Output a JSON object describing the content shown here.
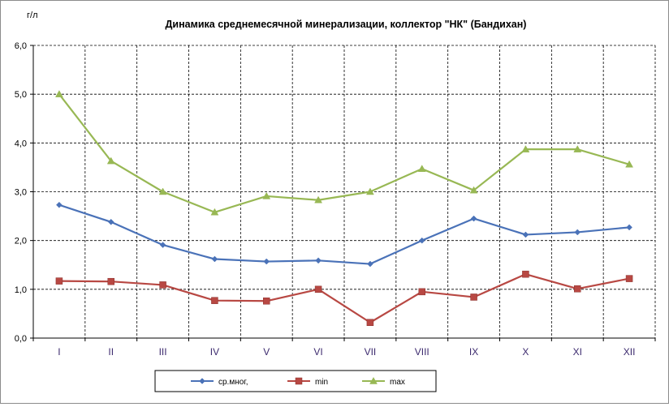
{
  "chart_data": {
    "type": "line",
    "title": "Динамика среднемесячной минерализации, коллектор \"НК\" (Бандихан)",
    "ylabel": "г/л",
    "xlabel": "",
    "categories": [
      "I",
      "II",
      "III",
      "IV",
      "V",
      "VI",
      "VII",
      "VIII",
      "IX",
      "X",
      "XI",
      "XII"
    ],
    "ylim": [
      0,
      6
    ],
    "yticks": [
      "0,0",
      "1,0",
      "2,0",
      "3,0",
      "4,0",
      "5,0",
      "6,0"
    ],
    "grid": true,
    "legend_position": "bottom",
    "series": [
      {
        "name": "ср.мног,",
        "color": "#4a72b8",
        "marker": "diamond",
        "values": [
          2.73,
          2.38,
          1.91,
          1.62,
          1.57,
          1.59,
          1.52,
          2.0,
          2.45,
          2.12,
          2.17,
          2.27
        ]
      },
      {
        "name": "min",
        "color": "#b84843",
        "marker": "square",
        "values": [
          1.17,
          1.16,
          1.09,
          0.77,
          0.76,
          1.0,
          0.32,
          0.95,
          0.84,
          1.31,
          1.01,
          1.22
        ]
      },
      {
        "name": "max",
        "color": "#98b854",
        "marker": "triangle",
        "values": [
          5.0,
          3.63,
          3.0,
          2.58,
          2.91,
          2.83,
          3.0,
          3.47,
          3.03,
          3.87,
          3.87,
          3.56
        ]
      }
    ]
  }
}
